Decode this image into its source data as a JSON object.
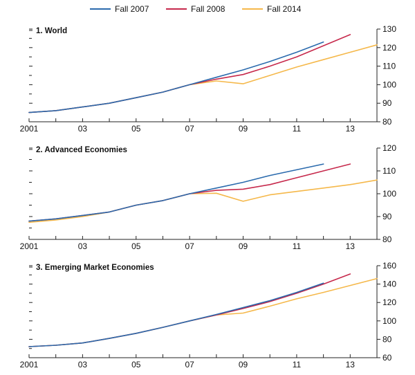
{
  "legend": [
    {
      "name": "Fall 2007",
      "color": "#2a6aad"
    },
    {
      "name": "Fall 2008",
      "color": "#c6284b"
    },
    {
      "name": "Fall 2014",
      "color": "#f5b84a"
    }
  ],
  "chart_data": [
    {
      "type": "line",
      "title": "1. World",
      "x_tick_labels": [
        "2001",
        "03",
        "05",
        "07",
        "09",
        "11",
        "13"
      ],
      "x_tick_years": [
        2001,
        2003,
        2005,
        2007,
        2009,
        2011,
        2013
      ],
      "xlim": [
        2001,
        2014
      ],
      "ylim": [
        80,
        130
      ],
      "y_ticks": [
        80,
        90,
        100,
        110,
        120,
        130
      ],
      "y_tick_labels": [
        "80",
        "90",
        "100",
        "110",
        "120",
        "130"
      ],
      "series": [
        {
          "name": "Fall 2007",
          "x": [
            2001,
            2002,
            2003,
            2004,
            2005,
            2006,
            2007,
            2008,
            2009,
            2010,
            2011,
            2012
          ],
          "values": [
            85,
            86,
            88,
            90,
            93,
            96,
            100,
            104,
            108,
            112.5,
            117.5,
            123
          ]
        },
        {
          "name": "Fall 2008",
          "x": [
            2001,
            2002,
            2003,
            2004,
            2005,
            2006,
            2007,
            2008,
            2009,
            2010,
            2011,
            2012,
            2013
          ],
          "values": [
            85,
            86,
            88,
            90,
            93,
            96,
            100,
            103,
            105.5,
            110,
            115,
            121,
            127
          ]
        },
        {
          "name": "Fall 2014",
          "x": [
            2001,
            2002,
            2003,
            2004,
            2005,
            2006,
            2007,
            2008,
            2009,
            2010,
            2011,
            2012,
            2013,
            2014
          ],
          "values": [
            85,
            86,
            88,
            90,
            93,
            96,
            100,
            102,
            100.5,
            105,
            109.5,
            113.5,
            117.5,
            121.5
          ]
        }
      ]
    },
    {
      "type": "line",
      "title": "2. Advanced Economies",
      "x_tick_labels": [
        "2001",
        "03",
        "05",
        "07",
        "09",
        "11",
        "13"
      ],
      "x_tick_years": [
        2001,
        2003,
        2005,
        2007,
        2009,
        2011,
        2013
      ],
      "xlim": [
        2001,
        2014
      ],
      "ylim": [
        80,
        120
      ],
      "y_ticks": [
        80,
        90,
        100,
        110,
        120
      ],
      "y_tick_labels": [
        "80",
        "90",
        "100",
        "110",
        "120"
      ],
      "series": [
        {
          "name": "Fall 2007",
          "x": [
            2001,
            2002,
            2003,
            2004,
            2005,
            2006,
            2007,
            2008,
            2009,
            2010,
            2011,
            2012
          ],
          "values": [
            88,
            89,
            90.5,
            92,
            95,
            97,
            100,
            102.5,
            105,
            108,
            110.5,
            113
          ]
        },
        {
          "name": "Fall 2008",
          "x": [
            2001,
            2002,
            2003,
            2004,
            2005,
            2006,
            2007,
            2008,
            2009,
            2010,
            2011,
            2012,
            2013
          ],
          "values": [
            88,
            89,
            90.5,
            92,
            95,
            97,
            100,
            101.5,
            102,
            104,
            107,
            110,
            113
          ]
        },
        {
          "name": "Fall 2014",
          "x": [
            2001,
            2002,
            2003,
            2004,
            2005,
            2006,
            2007,
            2008,
            2009,
            2010,
            2011,
            2012,
            2013,
            2014
          ],
          "values": [
            87.5,
            88.5,
            90,
            92,
            95,
            97,
            100,
            100.2,
            96.7,
            99.5,
            101,
            102.5,
            104,
            106
          ]
        }
      ]
    },
    {
      "type": "line",
      "title": "3. Emerging Market Economies",
      "x_tick_labels": [
        "2001",
        "03",
        "05",
        "07",
        "09",
        "11",
        "13"
      ],
      "x_tick_years": [
        2001,
        2003,
        2005,
        2007,
        2009,
        2011,
        2013
      ],
      "xlim": [
        2001,
        2014
      ],
      "ylim": [
        60,
        160
      ],
      "y_ticks": [
        60,
        80,
        100,
        120,
        140,
        160
      ],
      "y_tick_labels": [
        "60",
        "80",
        "100",
        "120",
        "140",
        "160"
      ],
      "series": [
        {
          "name": "Fall 2007",
          "x": [
            2001,
            2002,
            2003,
            2004,
            2005,
            2006,
            2007,
            2008,
            2009,
            2010,
            2011,
            2012
          ],
          "values": [
            72,
            73.5,
            76,
            81,
            86.5,
            93,
            100,
            107,
            114.5,
            122,
            131,
            141
          ]
        },
        {
          "name": "Fall 2008",
          "x": [
            2001,
            2002,
            2003,
            2004,
            2005,
            2006,
            2007,
            2008,
            2009,
            2010,
            2011,
            2012,
            2013
          ],
          "values": [
            72,
            73.5,
            76,
            81,
            86.5,
            93,
            100,
            106.5,
            113.5,
            121,
            130,
            140,
            151
          ]
        },
        {
          "name": "Fall 2014",
          "x": [
            2001,
            2002,
            2003,
            2004,
            2005,
            2006,
            2007,
            2008,
            2009,
            2010,
            2011,
            2012,
            2013,
            2014
          ],
          "values": [
            72,
            73.5,
            76,
            81,
            86.5,
            93,
            100,
            106.5,
            108.5,
            116,
            124,
            131,
            138.5,
            146
          ]
        }
      ]
    }
  ]
}
